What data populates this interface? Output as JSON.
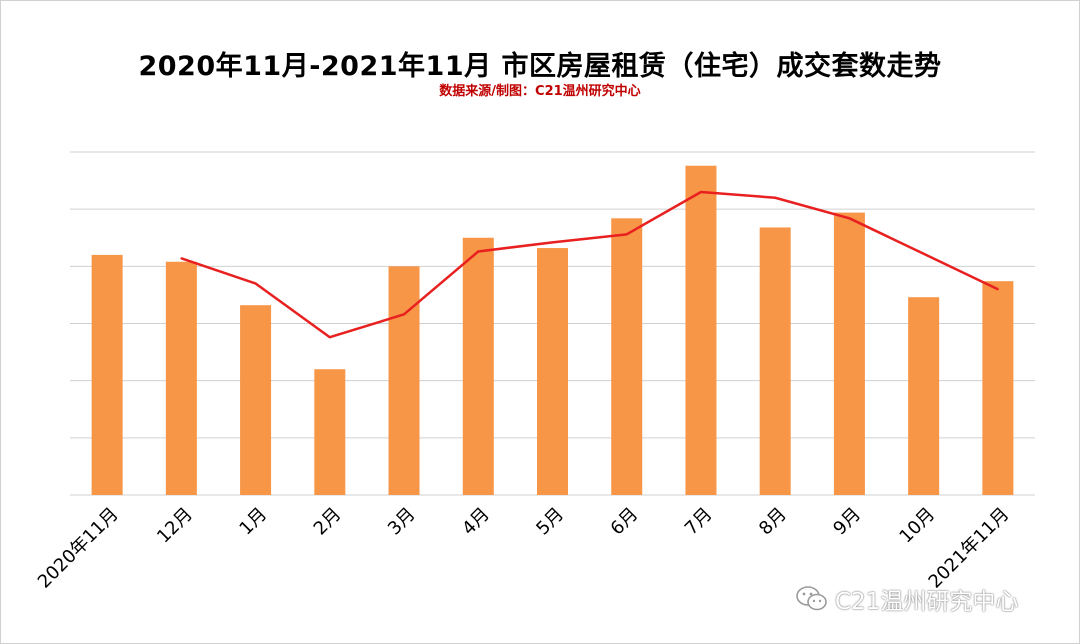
{
  "chart_data": {
    "type": "bar",
    "title": "2020年11月-2021年11月 市区房屋租赁（住宅）成交套数走势",
    "subtitle": "数据来源/制图：C21温州研究中心",
    "categories": [
      "2020年11月",
      "12月",
      "1月",
      "2月",
      "3月",
      "4月",
      "5月",
      "6月",
      "7月",
      "8月",
      "9月",
      "10月",
      "2021年11月"
    ],
    "series": [
      {
        "type": "bar",
        "color": "#f79646",
        "values": [
          4.2,
          4.08,
          3.32,
          2.2,
          4.0,
          4.5,
          4.32,
          4.84,
          5.76,
          4.68,
          4.94,
          3.46,
          3.74
        ]
      },
      {
        "type": "line",
        "color": "#e82020",
        "values": [
          null,
          4.14,
          3.7,
          2.76,
          3.16,
          4.26,
          4.42,
          4.56,
          5.3,
          5.2,
          4.84,
          4.22,
          3.6
        ]
      }
    ],
    "ylim": [
      0,
      6
    ],
    "grid": true,
    "watermark": "C21温州研究中心",
    "icons": {
      "watermark": "wechat-icon"
    }
  }
}
